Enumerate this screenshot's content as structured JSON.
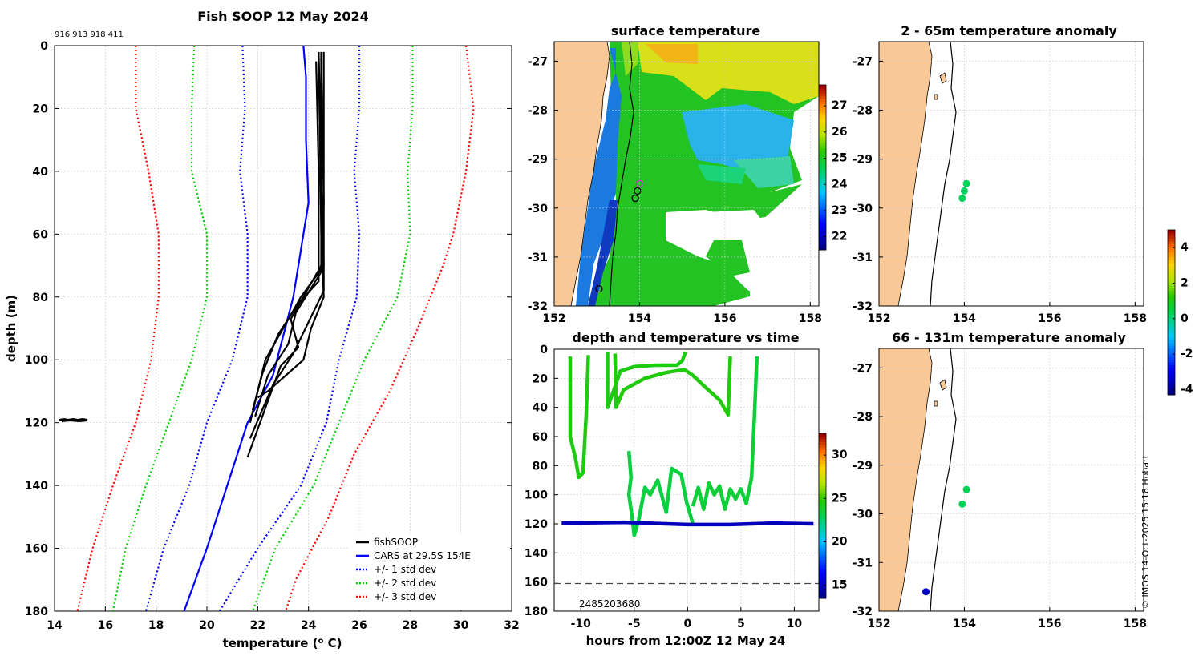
{
  "chart_data": [
    {
      "type": "line",
      "title": "Fish SOOP 12 May 2024",
      "ids": "916 913 918 411",
      "xlabel": "temperature (o C)",
      "ylabel": "depth (m)",
      "xlim": [
        14,
        32
      ],
      "ylim": [
        0,
        180
      ],
      "xticks": [
        14,
        16,
        18,
        20,
        22,
        24,
        26,
        28,
        30,
        32
      ],
      "yticks": [
        0,
        20,
        40,
        60,
        80,
        100,
        120,
        140,
        160,
        180
      ],
      "series": [
        {
          "name": "CARS at 29.5S 154E",
          "color": "#0000ff",
          "style": "solid",
          "points": [
            [
              23.8,
              0
            ],
            [
              23.9,
              10
            ],
            [
              23.9,
              30
            ],
            [
              24,
              50
            ],
            [
              23.4,
              80
            ],
            [
              22.6,
              105
            ],
            [
              21.6,
              120
            ],
            [
              20.8,
              140
            ],
            [
              20,
              160
            ],
            [
              19.1,
              180
            ]
          ]
        },
        {
          "name": "+/- 1 std dev",
          "color": "#0000ff",
          "style": "dotted",
          "left": [
            [
              21.4,
              0
            ],
            [
              21.5,
              20
            ],
            [
              21.3,
              40
            ],
            [
              21.6,
              60
            ],
            [
              21.6,
              80
            ],
            [
              21,
              100
            ],
            [
              20,
              120
            ],
            [
              19.3,
              140
            ],
            [
              18.3,
              160
            ],
            [
              17.6,
              180
            ]
          ],
          "right": [
            [
              26,
              0
            ],
            [
              26,
              20
            ],
            [
              25.8,
              40
            ],
            [
              26,
              60
            ],
            [
              25.9,
              80
            ],
            [
              25.2,
              100
            ],
            [
              24.7,
              120
            ],
            [
              23.7,
              140
            ],
            [
              22,
              160
            ],
            [
              20.5,
              180
            ]
          ]
        },
        {
          "name": "+/- 2 std dev",
          "color": "#00cc00",
          "style": "dotted",
          "left": [
            [
              19.5,
              0
            ],
            [
              19.4,
              20
            ],
            [
              19.4,
              40
            ],
            [
              20,
              60
            ],
            [
              20,
              80
            ],
            [
              19.4,
              100
            ],
            [
              18.5,
              120
            ],
            [
              17.6,
              140
            ],
            [
              16.8,
              160
            ],
            [
              16.3,
              180
            ]
          ],
          "right": [
            [
              28.1,
              0
            ],
            [
              28.1,
              20
            ],
            [
              27.9,
              40
            ],
            [
              28,
              60
            ],
            [
              27.5,
              80
            ],
            [
              26.2,
              100
            ],
            [
              25.2,
              120
            ],
            [
              24.2,
              140
            ],
            [
              22.7,
              160
            ],
            [
              21.8,
              180
            ]
          ]
        },
        {
          "name": "+/- 3 std dev",
          "color": "#ff0000",
          "style": "dotted",
          "left": [
            [
              17.2,
              0
            ],
            [
              17.2,
              20
            ],
            [
              17.7,
              40
            ],
            [
              18.1,
              60
            ],
            [
              18.1,
              80
            ],
            [
              17.8,
              100
            ],
            [
              17.2,
              120
            ],
            [
              16.3,
              140
            ],
            [
              15.5,
              160
            ],
            [
              14.9,
              180
            ]
          ],
          "right": [
            [
              30.2,
              0
            ],
            [
              30.5,
              20
            ],
            [
              30.2,
              40
            ],
            [
              29.7,
              60
            ],
            [
              29.3,
              70
            ],
            [
              28.3,
              90
            ],
            [
              27.2,
              110
            ],
            [
              25.8,
              130
            ],
            [
              24.8,
              150
            ],
            [
              23.5,
              170
            ],
            [
              23.1,
              180
            ]
          ]
        }
      ],
      "profiles": [
        [
          [
            24.5,
            2
          ],
          [
            24.5,
            40
          ],
          [
            24.6,
            70
          ],
          [
            23.7,
            80
          ],
          [
            23,
            90
          ],
          [
            22.3,
            100
          ],
          [
            21.7,
            120
          ]
        ],
        [
          [
            24.4,
            3
          ],
          [
            24.5,
            30
          ],
          [
            24.5,
            72
          ],
          [
            23.5,
            85
          ],
          [
            23.2,
            95
          ],
          [
            22.4,
            105
          ],
          [
            21.9,
            118
          ]
        ],
        [
          [
            24.6,
            2
          ],
          [
            24.6,
            45
          ],
          [
            24.6,
            78
          ],
          [
            24,
            88
          ],
          [
            23.4,
            98
          ],
          [
            22.6,
            108
          ],
          [
            21.7,
            125
          ]
        ],
        [
          [
            24.3,
            5
          ],
          [
            24.4,
            40
          ],
          [
            24.4,
            75
          ],
          [
            23.6,
            82
          ],
          [
            22.8,
            92
          ],
          [
            22.2,
            104
          ],
          [
            21.8,
            116
          ]
        ],
        [
          [
            24.5,
            4
          ],
          [
            24.6,
            50
          ],
          [
            24.5,
            70
          ],
          [
            23.3,
            87
          ],
          [
            23.6,
            96
          ],
          [
            22.9,
            102
          ],
          [
            21.6,
            131
          ]
        ],
        [
          [
            24.4,
            2
          ],
          [
            24.5,
            60
          ],
          [
            24.6,
            80
          ],
          [
            24.1,
            90
          ],
          [
            23.8,
            100
          ],
          [
            22.4,
            110
          ],
          [
            22,
            112
          ]
        ]
      ],
      "legend": [
        "fishSOOP",
        "CARS at 29.5S 154E",
        "+/- 1 std dev",
        "+/- 2 std dev",
        "+/- 3 std dev"
      ],
      "legend_position": "bottom-right"
    },
    {
      "type": "heatmap",
      "title": "surface temperature",
      "xticks": [
        152,
        154,
        156,
        158
      ],
      "yticks": [
        -27,
        -28,
        -29,
        -30,
        -31,
        -32
      ],
      "xlim": [
        152,
        158.2
      ],
      "ylim": [
        -32,
        -26.6
      ],
      "colorbar_ticks": [
        22,
        23,
        24,
        25,
        26,
        27
      ],
      "colorbar_range": [
        21.5,
        27.8
      ],
      "markers": [
        {
          "lon": 154.0,
          "lat": -29.5,
          "color": "#cc33cc"
        },
        {
          "lon": 153.95,
          "lat": -29.65,
          "color": "#000000"
        },
        {
          "lon": 153.9,
          "lat": -29.8,
          "color": "#000000"
        },
        {
          "lon": 153.05,
          "lat": -31.65,
          "color": "#000000"
        }
      ]
    },
    {
      "type": "scatter",
      "title": "2 - 65m temperature anomaly",
      "xticks": [
        152,
        154,
        156,
        158
      ],
      "yticks": [
        -27,
        -28,
        -29,
        -30,
        -31,
        -32
      ],
      "xlim": [
        152,
        158.2
      ],
      "ylim": [
        -32,
        -26.6
      ],
      "points": [
        {
          "lon": 154.05,
          "lat": -29.5,
          "anomaly": 0.3
        },
        {
          "lon": 154.0,
          "lat": -29.65,
          "anomaly": 0.2
        },
        {
          "lon": 153.95,
          "lat": -29.8,
          "anomaly": 0.3
        }
      ]
    },
    {
      "type": "scatter",
      "title": "66 - 131m temperature anomaly",
      "xticks": [
        152,
        154,
        156,
        158
      ],
      "yticks": [
        -27,
        -28,
        -29,
        -30,
        -31,
        -32
      ],
      "xlim": [
        152,
        158.2
      ],
      "ylim": [
        -32,
        -26.6
      ],
      "points": [
        {
          "lon": 154.05,
          "lat": -29.5,
          "anomaly": 0.3
        },
        {
          "lon": 153.95,
          "lat": -29.8,
          "anomaly": 0.3
        },
        {
          "lon": 153.1,
          "lat": -31.6,
          "anomaly": -3.5
        }
      ],
      "colorbar_ticks": [
        -4,
        -2,
        0,
        2,
        4
      ],
      "colorbar_range": [
        -4.3,
        5
      ]
    },
    {
      "type": "scatter",
      "title": "depth and temperature vs time",
      "xlabel": "hours from 12:00Z 12 May 24",
      "xticks": [
        -10,
        -5,
        0,
        5,
        10
      ],
      "yticks": [
        0,
        20,
        40,
        60,
        80,
        100,
        120,
        140,
        160,
        180
      ],
      "xlim": [
        -12.5,
        12.3
      ],
      "ylim": [
        0,
        180
      ],
      "ref_depth": 161,
      "annotation": "2485203680",
      "colorbar_ticks": [
        15,
        20,
        25,
        30
      ],
      "colorbar_range": [
        13.5,
        32.5
      ],
      "tracks": [
        {
          "temp": 24.5,
          "points": [
            [
              -11,
              5
            ],
            [
              -11,
              60
            ],
            [
              -10.5,
              75
            ],
            [
              -10.2,
              88
            ],
            [
              -9.8,
              85
            ],
            [
              -9.5,
              45
            ],
            [
              -9.3,
              4
            ]
          ]
        },
        {
          "temp": 24.4,
          "points": [
            [
              -7.5,
              2
            ],
            [
              -7.5,
              40
            ],
            [
              -7,
              30
            ],
            [
              -6.3,
              15
            ],
            [
              -5,
              12
            ],
            [
              -3,
              11
            ],
            [
              -1,
              11
            ],
            [
              -0.5,
              8
            ],
            [
              -0.2,
              2
            ]
          ]
        },
        {
          "temp": 24.6,
          "points": [
            [
              -6.8,
              3
            ],
            [
              -6.7,
              40
            ],
            [
              -6,
              28
            ],
            [
              -4,
              20
            ],
            [
              -2,
              16
            ],
            [
              -0.3,
              14
            ],
            [
              0.5,
              18
            ],
            [
              1.5,
              25
            ],
            [
              3,
              35
            ],
            [
              3.8,
              45
            ],
            [
              4,
              5
            ]
          ]
        },
        {
          "temp": 23.4,
          "points": [
            [
              -5.5,
              70
            ],
            [
              -5.3,
              88
            ],
            [
              -5.5,
              100
            ],
            [
              -5.2,
              115
            ],
            [
              -5,
              128
            ],
            [
              -4.6,
              118
            ],
            [
              -4,
              95
            ],
            [
              -3.5,
              100
            ],
            [
              -2.8,
              90
            ],
            [
              -2,
              112
            ],
            [
              -1.5,
              82
            ],
            [
              -0.6,
              86
            ],
            [
              -0.1,
              105
            ],
            [
              0.5,
              120
            ]
          ]
        },
        {
          "temp": 23.6,
          "points": [
            [
              0.5,
              108
            ],
            [
              1,
              95
            ],
            [
              1.5,
              110
            ],
            [
              2,
              92
            ],
            [
              2.5,
              100
            ],
            [
              3,
              94
            ],
            [
              3.5,
              110
            ],
            [
              4,
              96
            ],
            [
              4.5,
              103
            ],
            [
              5,
              96
            ],
            [
              5.5,
              106
            ],
            [
              6,
              88
            ],
            [
              6.3,
              40
            ],
            [
              6.5,
              5
            ]
          ]
        },
        {
          "temp": 14.8,
          "points": [
            [
              -11.8,
              119.5
            ],
            [
              -6,
              119
            ],
            [
              -2,
              120
            ],
            [
              0,
              120.5
            ],
            [
              4,
              120.5
            ],
            [
              8,
              119.5
            ],
            [
              11.8,
              120
            ]
          ]
        }
      ]
    }
  ],
  "stamp": "© IMOS 14-Oct-2025 15:18 Hobart",
  "colors": {
    "land": "#f9c897",
    "coast": "#000000",
    "grid": "#cccccc"
  }
}
